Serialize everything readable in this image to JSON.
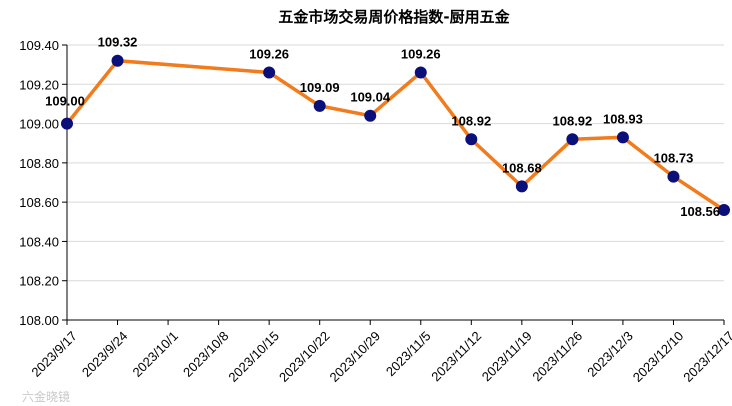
{
  "chart_data": {
    "type": "line",
    "title": "五金市场交易周价格指数-厨用五金",
    "xlabel": "",
    "ylabel": "",
    "categories": [
      "2023/9/17",
      "2023/9/24",
      "2023/10/1",
      "2023/10/8",
      "2023/10/15",
      "2023/10/22",
      "2023/10/29",
      "2023/11/5",
      "2023/11/12",
      "2023/11/19",
      "2023/11/26",
      "2023/12/3",
      "2023/12/10",
      "2023/12/17"
    ],
    "series": [
      {
        "values": [
          109.0,
          109.32,
          null,
          null,
          109.26,
          109.09,
          109.04,
          109.26,
          108.92,
          108.68,
          108.92,
          108.93,
          108.73,
          108.56
        ],
        "labels": [
          "109.00",
          "109.32",
          null,
          null,
          "109.26",
          "109.09",
          "109.04",
          "109.26",
          "108.92",
          "108.68",
          "108.92",
          "108.93",
          "108.73",
          "108.56"
        ]
      }
    ],
    "ylim": [
      108.0,
      109.4
    ],
    "yticks": [
      "108.00",
      "108.20",
      "108.40",
      "108.60",
      "108.80",
      "109.00",
      "109.20",
      "109.40"
    ],
    "grid": true,
    "legend": "none",
    "colors": {
      "line": "#f07c1e",
      "marker": "#0a0f7a",
      "grid": "#d9d9d9"
    }
  },
  "watermark": "六金晓镜"
}
